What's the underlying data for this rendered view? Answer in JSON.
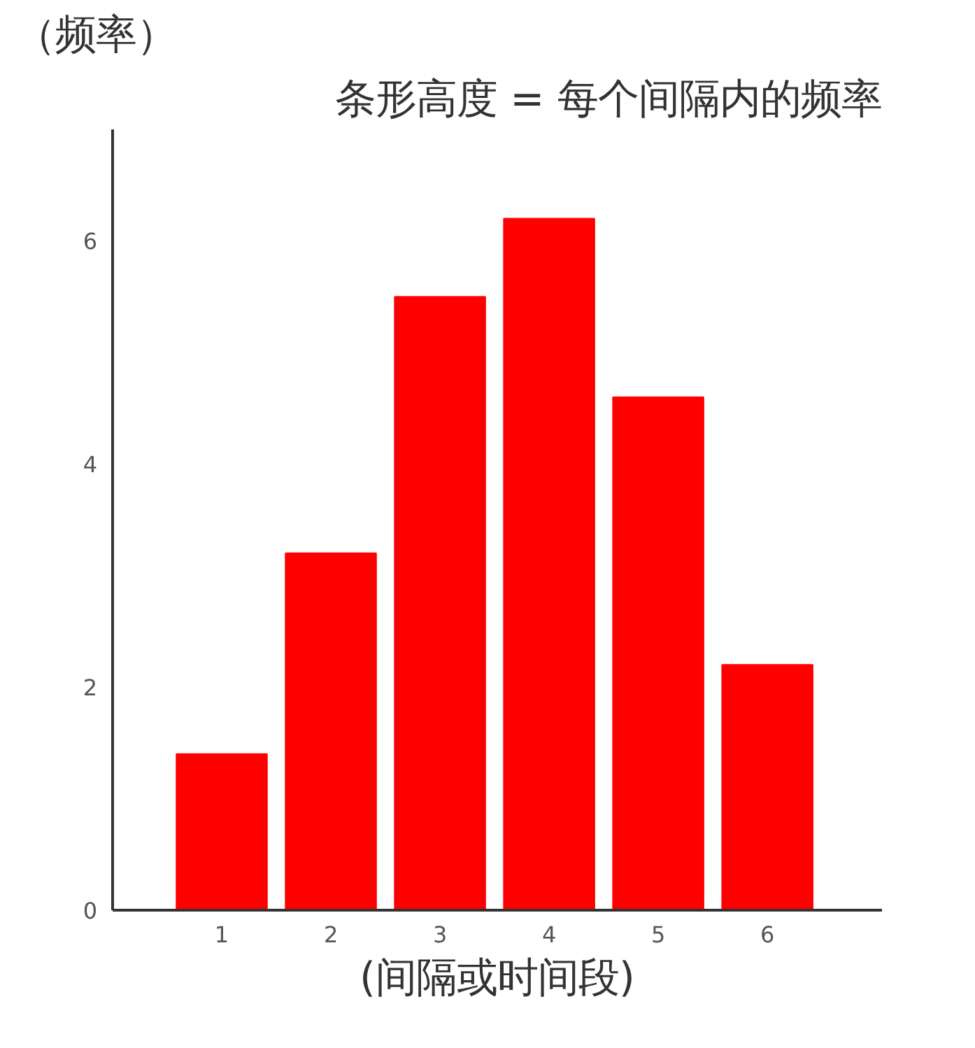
{
  "chart_data": {
    "type": "bar",
    "title": "条形高度 = 每个间隔内的频率",
    "ylabel": "（频率）",
    "xlabel": "(间隔或时间段)",
    "categories": [
      "1",
      "2",
      "3",
      "4",
      "5",
      "6"
    ],
    "values": [
      1.4,
      3.2,
      5.5,
      6.2,
      4.6,
      2.2
    ],
    "color": "#ff0000",
    "ylim": [
      0,
      7
    ],
    "yticks": [
      0,
      2,
      4,
      6
    ],
    "grid": false
  }
}
